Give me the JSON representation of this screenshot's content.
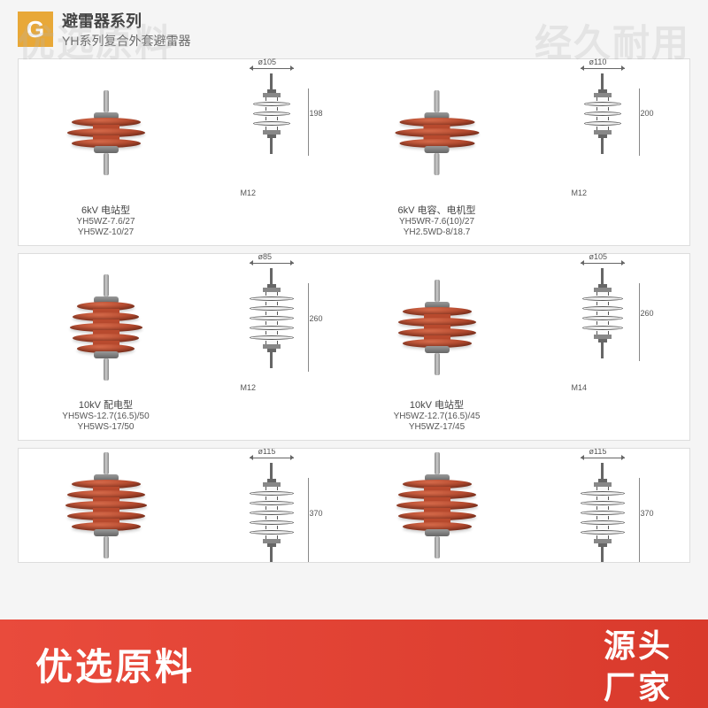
{
  "watermarks": {
    "top_left": "优选原料",
    "top_right": "经久耐用",
    "center": "经久耐用"
  },
  "banner": {
    "left": "优选原料",
    "right_top": "源头",
    "right_bot": "厂家",
    "bg_color_start": "#e94b3c",
    "bg_color_end": "#d93a2c",
    "text_color": "#ffffff"
  },
  "header": {
    "badge_letter": "G",
    "badge_bg": "#e8a838",
    "title": "避雷器系列",
    "subtitle": "YH系列复合外套避雷器"
  },
  "disc_color": "#b84a2e",
  "cap_color": "#888888",
  "rows": [
    {
      "cells": [
        {
          "type": "product",
          "discs": 3,
          "disc_widths": [
            78,
            88,
            78
          ],
          "label": "6kV 电站型",
          "models": [
            "YH5WZ-7.6/27",
            "YH5WZ-10/27"
          ]
        },
        {
          "type": "diagram",
          "discs": 3,
          "top_dim": "ø105",
          "height_dim": "198",
          "bolt": "M12"
        },
        {
          "type": "product",
          "discs": 3,
          "disc_widths": [
            85,
            95,
            85
          ],
          "label": "6kV 电容、电机型",
          "models": [
            "YH5WR-7.6(10)/27",
            "YH2.5WD-8/18.7"
          ]
        },
        {
          "type": "diagram",
          "discs": 3,
          "top_dim": "ø110",
          "height_dim": "200",
          "bolt": "M12"
        }
      ]
    },
    {
      "cells": [
        {
          "type": "product",
          "discs": 5,
          "disc_widths": [
            65,
            75,
            82,
            75,
            65
          ],
          "label": "10kV 配电型",
          "models": [
            "YH5WS-12.7(16.5)/50",
            "YH5WS-17/50"
          ]
        },
        {
          "type": "diagram",
          "discs": 5,
          "top_dim": "ø85",
          "height_dim": "260",
          "bolt": "M12"
        },
        {
          "type": "product",
          "discs": 4,
          "disc_widths": [
            78,
            88,
            88,
            78
          ],
          "label": "10kV 电站型",
          "models": [
            "YH5WZ-12.7(16.5)/45",
            "YH5WZ-17/45"
          ]
        },
        {
          "type": "diagram",
          "discs": 4,
          "top_dim": "ø105",
          "height_dim": "260",
          "bolt": "M14"
        }
      ]
    },
    {
      "partial": true,
      "cells": [
        {
          "type": "product",
          "discs": 5,
          "disc_widths": [
            78,
            88,
            92,
            88,
            78
          ],
          "label": "",
          "models": []
        },
        {
          "type": "diagram",
          "discs": 5,
          "top_dim": "ø115",
          "height_dim": "370",
          "bolt": ""
        },
        {
          "type": "product",
          "discs": 5,
          "disc_widths": [
            78,
            88,
            92,
            88,
            78
          ],
          "label": "",
          "models": []
        },
        {
          "type": "diagram",
          "discs": 5,
          "top_dim": "ø115",
          "height_dim": "370",
          "bolt": ""
        }
      ]
    }
  ]
}
